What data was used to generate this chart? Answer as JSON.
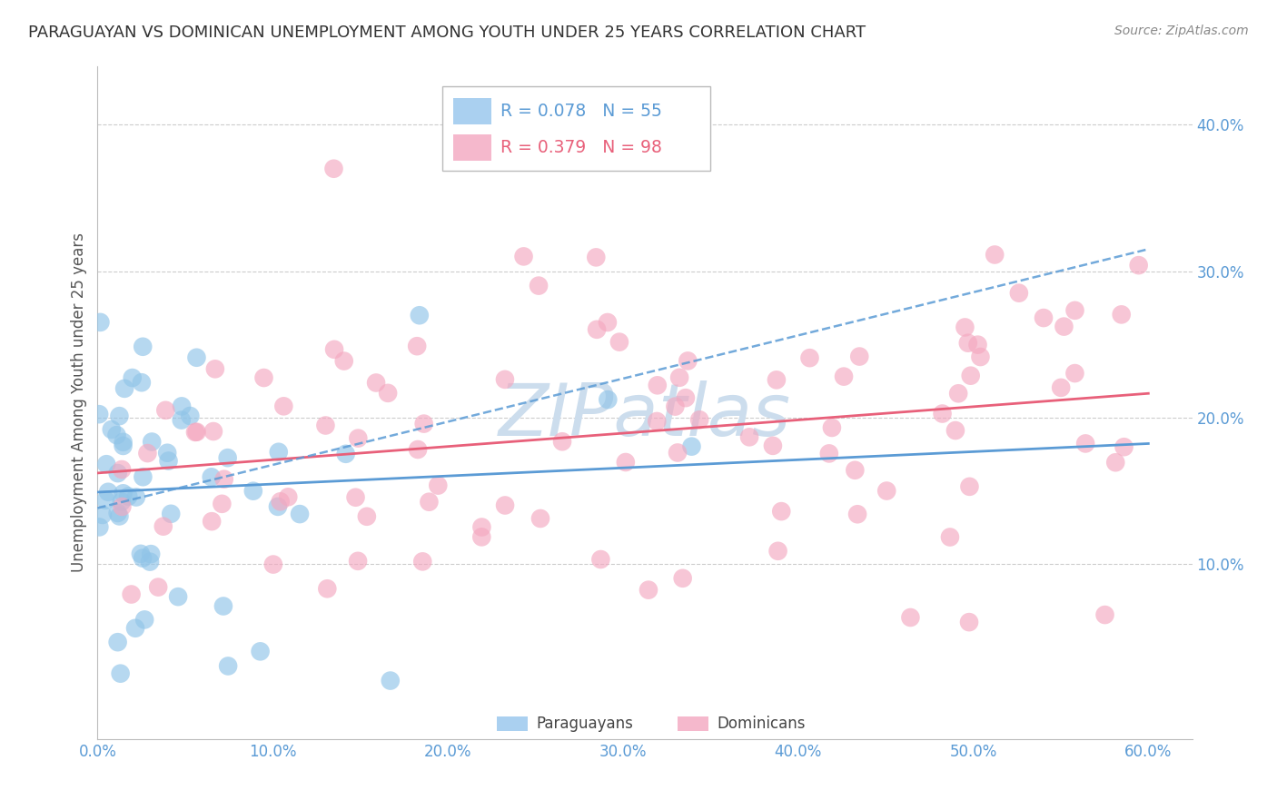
{
  "title": "PARAGUAYAN VS DOMINICAN UNEMPLOYMENT AMONG YOUTH UNDER 25 YEARS CORRELATION CHART",
  "source": "Source: ZipAtlas.com",
  "ylabel": "Unemployment Among Youth under 25 years",
  "xlim": [
    0.0,
    0.625
  ],
  "ylim": [
    -0.02,
    0.44
  ],
  "yticks": [
    0.1,
    0.2,
    0.3,
    0.4
  ],
  "ytick_labels": [
    "10.0%",
    "20.0%",
    "30.0%",
    "40.0%"
  ],
  "xticks": [
    0.0,
    0.1,
    0.2,
    0.3,
    0.4,
    0.5,
    0.6
  ],
  "xtick_labels": [
    "0.0%",
    "10.0%",
    "20.0%",
    "30.0%",
    "40.0%",
    "50.0%",
    "60.0%"
  ],
  "paraguayan_R": 0.078,
  "paraguayan_N": 55,
  "dominican_R": 0.379,
  "dominican_N": 98,
  "background_color": "#ffffff",
  "grid_color": "#cccccc",
  "blue_scatter_color": "#90c4e8",
  "pink_scatter_color": "#f4a8c0",
  "blue_line_color": "#5b9bd5",
  "pink_line_color": "#e8607a",
  "axis_tick_color": "#5b9bd5",
  "ylabel_color": "#555555",
  "watermark_color": "#ccdded",
  "title_color": "#333333",
  "source_color": "#888888",
  "legend_border_color": "#bbbbbb",
  "legend_bg_color": "#ffffff",
  "legend_blue_rect": "#aad0f0",
  "legend_pink_rect": "#f5b8cc",
  "bottom_legend_blue_rect": "#aad0f0",
  "bottom_legend_pink_rect": "#f5b8cc"
}
